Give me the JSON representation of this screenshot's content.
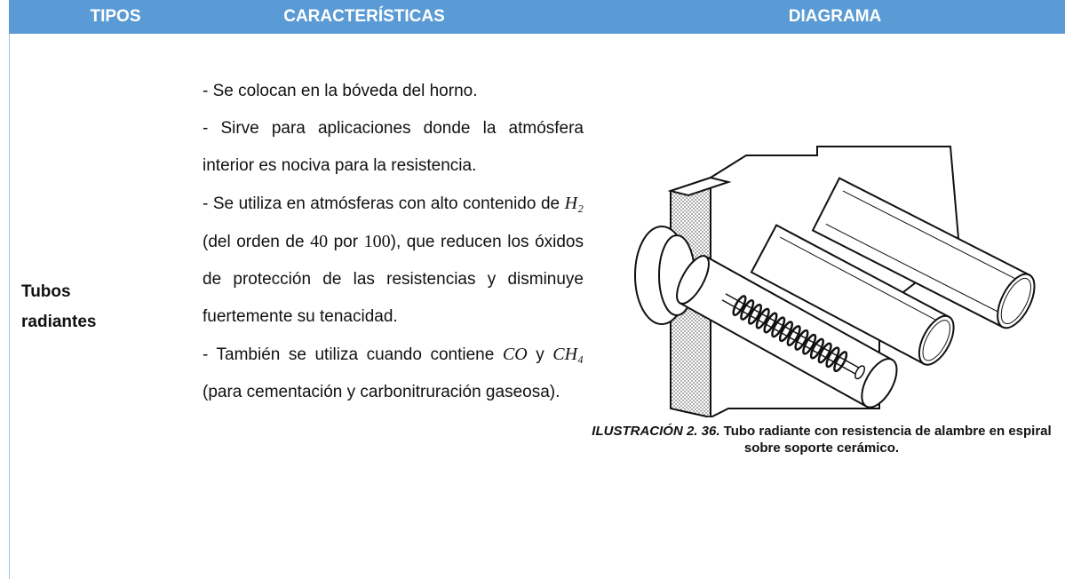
{
  "table": {
    "headers": [
      "TIPOS",
      "CARACTERÍSTICAS",
      "DIAGRAMA"
    ],
    "rows": [
      {
        "type": "Tubos radiantes",
        "characteristics": [
          [
            "- Se colocan en la bóveda del horno."
          ],
          [
            "- Sirve para aplicaciones donde la atmósfera interior es nociva para la resistencia."
          ],
          [
            "- Se utiliza en atmósferas con alto contenido de ",
            "H₂",
            " (del orden de ",
            "40",
            " por ",
            "100",
            "), que reducen los óxidos de protección de las resistencias y disminuye fuertemente su tenacidad."
          ],
          [
            "- También se utiliza cuando contiene ",
            "CO",
            " y ",
            "CH₄",
            " (para cementación y carbonitruración gaseosa)."
          ]
        ],
        "diagram": {
          "caption_label": "ILUSTRACIÓN 2. 36.",
          "caption_text": "Tubo radiante con resistencia de alambre en espiral sobre soporte cerámico."
        }
      }
    ]
  }
}
